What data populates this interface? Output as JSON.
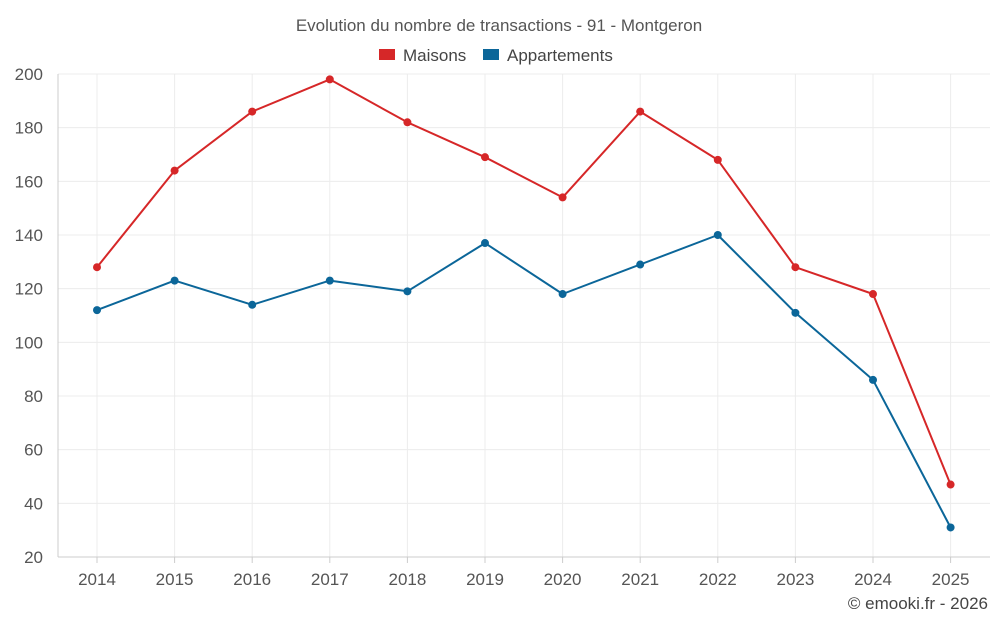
{
  "chart_data": {
    "type": "line",
    "title": "Evolution du nombre de transactions - 91 - Montgeron",
    "categories": [
      "2014",
      "2015",
      "2016",
      "2017",
      "2018",
      "2019",
      "2020",
      "2021",
      "2022",
      "2023",
      "2024",
      "2025"
    ],
    "series": [
      {
        "name": "Maisons",
        "color": "#d62728",
        "values": [
          128,
          164,
          186,
          198,
          182,
          169,
          154,
          186,
          168,
          128,
          118,
          47
        ]
      },
      {
        "name": "Appartements",
        "color": "#0b6699",
        "values": [
          112,
          123,
          114,
          123,
          119,
          137,
          118,
          129,
          140,
          111,
          86,
          31
        ]
      }
    ],
    "ylim": [
      20,
      200
    ],
    "yticks": [
      "20",
      "40",
      "60",
      "80",
      "100",
      "120",
      "140",
      "160",
      "180",
      "200"
    ],
    "legend_position": "top-center",
    "grid": true
  },
  "credit": "© emooki.fr - 2026"
}
